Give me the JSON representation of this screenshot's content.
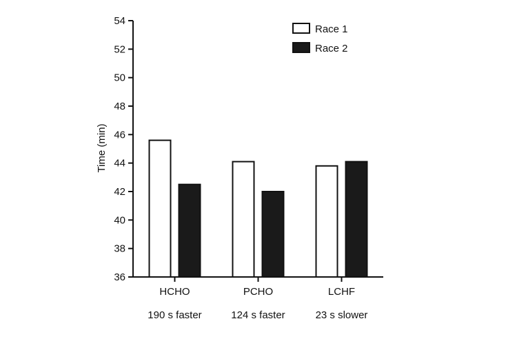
{
  "chart_data": {
    "type": "bar",
    "title": "",
    "xlabel": "",
    "ylabel": "Time (min)",
    "ylim": [
      36,
      54
    ],
    "yticks": [
      36,
      38,
      40,
      42,
      44,
      46,
      48,
      50,
      52,
      54
    ],
    "categories": [
      "HCHO",
      "PCHO",
      "LCHF"
    ],
    "category_notes": [
      "190 s faster",
      "124 s faster",
      "23 s slower"
    ],
    "series": [
      {
        "name": "Race 1",
        "fill": "#ffffff",
        "values": [
          45.6,
          44.1,
          43.8
        ]
      },
      {
        "name": "Race 2",
        "fill": "#1a1a1a",
        "values": [
          42.5,
          42.0,
          44.1
        ]
      }
    ],
    "legend_position": "top-right",
    "grid": false
  }
}
